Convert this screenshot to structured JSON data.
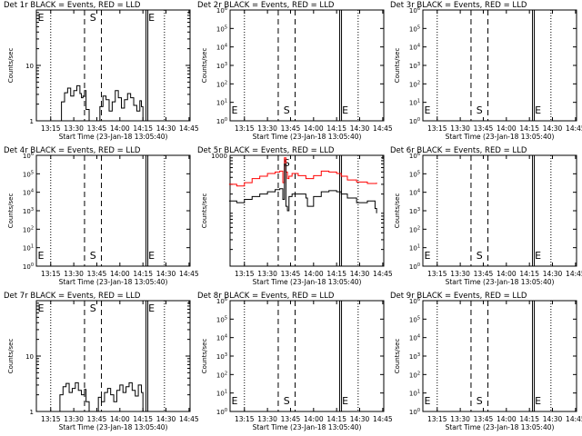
{
  "figure": {
    "start_time_label": "Start Time (23-Jan-18 13:05:40)",
    "ylabel": "Counts/sec",
    "marker_E": "E",
    "marker_S": "S",
    "xticks": [
      "13:15",
      "13:30",
      "13:45",
      "14:00",
      "14:15",
      "14:30",
      "14:45"
    ]
  },
  "chart_data": [
    {
      "type": "line",
      "title": "Det 1r BLACK = Events, RED = LLD",
      "xlabel": "Start Time (23-Jan-18 13:05:40)",
      "ylabel": "Counts/sec",
      "scale": "log",
      "ylim": [
        1,
        100
      ],
      "yticks": [
        "1",
        "10"
      ],
      "show_labels": {
        "E": "top",
        "S": "top"
      },
      "markers": {
        "E_left": "13:05",
        "dotted": [
          "13:15",
          "14:29"
        ],
        "dashed": [
          "13:37",
          "13:48"
        ],
        "solid": [
          "14:17"
        ],
        "E_right": "14:17"
      },
      "series": [
        {
          "color": "#000000",
          "x": [
            "13:15",
            "13:21",
            "13:22",
            "13:24",
            "13:26",
            "13:28",
            "13:30",
            "13:32",
            "13:34",
            "13:35",
            "13:36",
            "13:37",
            "13:38",
            "13:40",
            "13:41",
            "13:43",
            "13:45",
            "13:47",
            "13:49",
            "13:51",
            "13:53",
            "13:55",
            "13:57",
            "13:59",
            "14:01",
            "14:03",
            "14:05",
            "14:07",
            "14:09",
            "14:11",
            "14:13",
            "14:14",
            "14:15"
          ],
          "y": [
            1,
            1,
            2.2,
            3.2,
            3.9,
            2.8,
            3.5,
            4.3,
            3.1,
            2.6,
            2.8,
            3.5,
            1.6,
            1,
            1,
            1,
            1,
            1.8,
            2.8,
            2.4,
            1.5,
            2.2,
            3.5,
            2.6,
            1.7,
            2.4,
            3.1,
            2.6,
            1.9,
            1.5,
            2.3,
            1.8,
            1
          ]
        }
      ]
    },
    {
      "type": "line",
      "title": "Det 2r BLACK = Events, RED = LLD",
      "xlabel": "Start Time (23-Jan-18 13:05:40)",
      "ylabel": "Counts/sec",
      "scale": "log",
      "ylim": [
        1,
        1000000
      ],
      "yticks": [
        "10^0",
        "10^1",
        "10^2",
        "10^3",
        "10^4",
        "10^5",
        "10^6"
      ],
      "show_labels": {
        "E": "bottom",
        "S": "bottom"
      },
      "markers": {
        "E_left": "13:05",
        "dotted": [
          "13:15",
          "14:29"
        ],
        "dashed": [
          "13:37",
          "13:48"
        ],
        "solid": [
          "14:17"
        ],
        "E_right": "14:17"
      },
      "series": []
    },
    {
      "type": "line",
      "title": "Det 3r BLACK = Events, RED = LLD",
      "xlabel": "Start Time (23-Jan-18 13:05:40)",
      "ylabel": "Counts/sec",
      "scale": "log",
      "ylim": [
        1,
        1000000
      ],
      "yticks": [
        "10^0",
        "10^1",
        "10^2",
        "10^3",
        "10^4",
        "10^5",
        "10^6"
      ],
      "show_labels": {
        "E": "bottom",
        "S": "bottom"
      },
      "markers": {
        "E_left": "13:05",
        "dotted": [
          "13:15",
          "14:29"
        ],
        "dashed": [
          "13:37",
          "13:48"
        ],
        "solid": [
          "14:17"
        ],
        "E_right": "14:17"
      },
      "series": []
    },
    {
      "type": "line",
      "title": "Det 4r BLACK = Events, RED = LLD",
      "xlabel": "Start Time (23-Jan-18 13:05:40)",
      "ylabel": "Counts/sec",
      "scale": "log",
      "ylim": [
        1,
        1000000
      ],
      "yticks": [
        "10^0",
        "10^1",
        "10^2",
        "10^3",
        "10^4",
        "10^5",
        "10^6"
      ],
      "show_labels": {
        "E": "bottom",
        "S": "bottom"
      },
      "markers": {
        "E_left": "13:05",
        "dotted": [
          "13:15",
          "14:29"
        ],
        "dashed": [
          "13:37",
          "13:48"
        ],
        "solid": [
          "14:17"
        ],
        "E_right": "14:17"
      },
      "series": []
    },
    {
      "type": "line",
      "title": "Det 5r BLACK = Events, RED = LLD",
      "xlabel": "Start Time (23-Jan-18 13:05:40)",
      "ylabel": "Counts/sec",
      "scale": "log",
      "ylim": [
        10,
        1000
      ],
      "yticks": [
        "1000"
      ],
      "show_labels": {
        "E": "none",
        "S": "top"
      },
      "markers": {
        "E_left": "13:05",
        "dotted": [
          "13:15",
          "14:29"
        ],
        "dashed": [
          "13:37",
          "13:48"
        ],
        "solid": [
          "14:17"
        ],
        "E_right": "14:17"
      },
      "series": [
        {
          "color": "#ff0000",
          "x": [
            "13:05",
            "13:10",
            "13:15",
            "13:20",
            "13:25",
            "13:30",
            "13:35",
            "13:38",
            "13:40",
            "13:41",
            "13:42",
            "13:43",
            "13:44",
            "13:46",
            "13:50",
            "13:55",
            "14:00",
            "14:05",
            "14:10",
            "14:15",
            "14:18",
            "14:22",
            "14:28",
            "14:35",
            "14:41"
          ],
          "y": [
            300,
            280,
            320,
            380,
            420,
            470,
            500,
            520,
            320,
            900,
            500,
            380,
            420,
            470,
            430,
            380,
            430,
            520,
            500,
            470,
            420,
            360,
            330,
            310,
            320
          ]
        },
        {
          "color": "#000000",
          "x": [
            "13:05",
            "13:10",
            "13:15",
            "13:20",
            "13:25",
            "13:30",
            "13:35",
            "13:38",
            "13:40",
            "13:41",
            "13:42",
            "13:43",
            "13:44",
            "13:46",
            "13:50",
            "13:55",
            "13:56",
            "13:58",
            "14:00",
            "14:05",
            "14:10",
            "14:15",
            "14:18",
            "14:22",
            "14:28",
            "14:30",
            "14:35",
            "14:40",
            "14:41"
          ],
          "y": [
            150,
            140,
            160,
            180,
            200,
            220,
            240,
            250,
            160,
            700,
            120,
            100,
            180,
            200,
            200,
            170,
            120,
            120,
            180,
            220,
            230,
            220,
            200,
            170,
            140,
            140,
            150,
            110,
            90
          ]
        }
      ]
    },
    {
      "type": "line",
      "title": "Det 6r BLACK = Events, RED = LLD",
      "xlabel": "Start Time (23-Jan-18 13:05:40)",
      "ylabel": "Counts/sec",
      "scale": "log",
      "ylim": [
        1,
        1000000
      ],
      "yticks": [
        "10^0",
        "10^1",
        "10^2",
        "10^3",
        "10^4",
        "10^5",
        "10^6"
      ],
      "show_labels": {
        "E": "bottom",
        "S": "bottom"
      },
      "markers": {
        "E_left": "13:05",
        "dotted": [
          "13:15",
          "14:29"
        ],
        "dashed": [
          "13:37",
          "13:48"
        ],
        "solid": [
          "14:17"
        ],
        "E_right": "14:17"
      },
      "series": []
    },
    {
      "type": "line",
      "title": "Det 7r BLACK = Events, RED = LLD",
      "xlabel": "Start Time (23-Jan-18 13:05:40)",
      "ylabel": "Counts/sec",
      "scale": "log",
      "ylim": [
        1,
        100
      ],
      "yticks": [
        "1",
        "10"
      ],
      "show_labels": {
        "E": "top",
        "S": "top"
      },
      "markers": {
        "E_left": "13:05",
        "dotted": [
          "13:15",
          "14:29"
        ],
        "dashed": [
          "13:37",
          "13:48"
        ],
        "solid": [
          "14:17"
        ],
        "E_right": "14:17"
      },
      "series": [
        {
          "color": "#000000",
          "x": [
            "13:15",
            "13:20",
            "13:21",
            "13:23",
            "13:25",
            "13:27",
            "13:29",
            "13:31",
            "13:33",
            "13:35",
            "13:37",
            "13:38",
            "13:40",
            "13:42",
            "13:44",
            "13:46",
            "13:48",
            "13:50",
            "13:52",
            "13:54",
            "13:56",
            "13:58",
            "14:00",
            "14:02",
            "14:04",
            "14:06",
            "14:08",
            "14:10",
            "14:12",
            "14:14",
            "14:15"
          ],
          "y": [
            1,
            1,
            2,
            2.8,
            3.2,
            2.2,
            2.6,
            3.3,
            2.4,
            2,
            2.5,
            1.5,
            1,
            1,
            1,
            1.8,
            1.5,
            2.2,
            2.6,
            2,
            1.5,
            2.4,
            3,
            2.2,
            2.8,
            3.3,
            2.4,
            1.9,
            3,
            2.2,
            1
          ]
        }
      ]
    },
    {
      "type": "line",
      "title": "Det 8r BLACK = Events, RED = LLD",
      "xlabel": "Start Time (23-Jan-18 13:05:40)",
      "ylabel": "Counts/sec",
      "scale": "log",
      "ylim": [
        1,
        1000000
      ],
      "yticks": [
        "10^0",
        "10^1",
        "10^2",
        "10^3",
        "10^4",
        "10^5",
        "10^6"
      ],
      "show_labels": {
        "E": "bottom",
        "S": "bottom"
      },
      "markers": {
        "E_left": "13:05",
        "dotted": [
          "13:15",
          "14:29"
        ],
        "dashed": [
          "13:37",
          "13:48"
        ],
        "solid": [
          "14:17"
        ],
        "E_right": "14:17"
      },
      "series": []
    },
    {
      "type": "line",
      "title": "Det 9r BLACK = Events, RED = LLD",
      "xlabel": "Start Time (23-Jan-18 13:05:40)",
      "ylabel": "Counts/sec",
      "scale": "log",
      "ylim": [
        1,
        1000000
      ],
      "yticks": [
        "10^0",
        "10^1",
        "10^2",
        "10^3",
        "10^4",
        "10^5",
        "10^6"
      ],
      "show_labels": {
        "E": "bottom",
        "S": "bottom"
      },
      "markers": {
        "E_left": "13:05",
        "dotted": [
          "13:15",
          "14:29"
        ],
        "dashed": [
          "13:37",
          "13:48"
        ],
        "solid": [
          "14:17"
        ],
        "E_right": "14:17"
      },
      "series": []
    }
  ]
}
